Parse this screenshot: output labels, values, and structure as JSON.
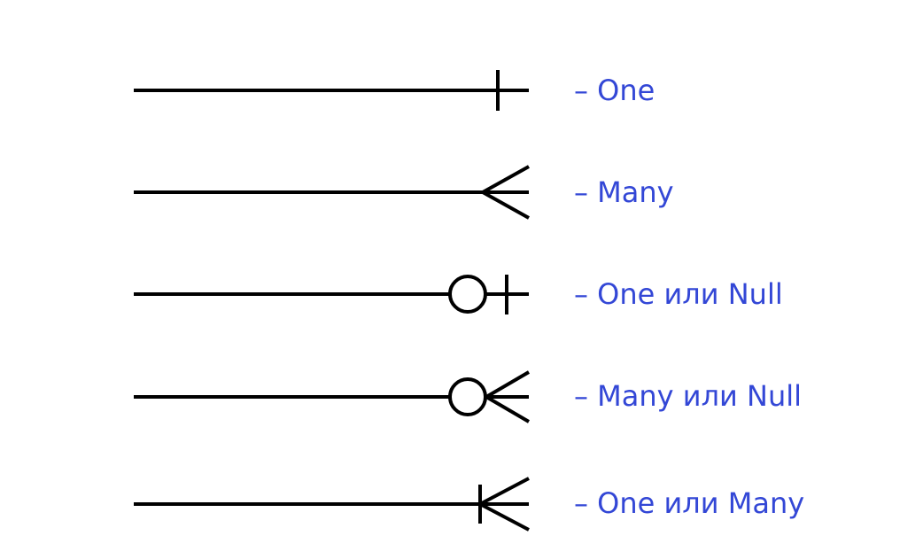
{
  "accent_color": "#3347d6",
  "line_color": "#000000",
  "legend": [
    {
      "symbol": "one",
      "label": "– One"
    },
    {
      "symbol": "many",
      "label": "– Many"
    },
    {
      "symbol": "zero-or-one",
      "label": "– One или Null"
    },
    {
      "symbol": "zero-or-many",
      "label": "– Many или Null"
    },
    {
      "symbol": "one-or-many",
      "label": "– One или Many"
    }
  ]
}
